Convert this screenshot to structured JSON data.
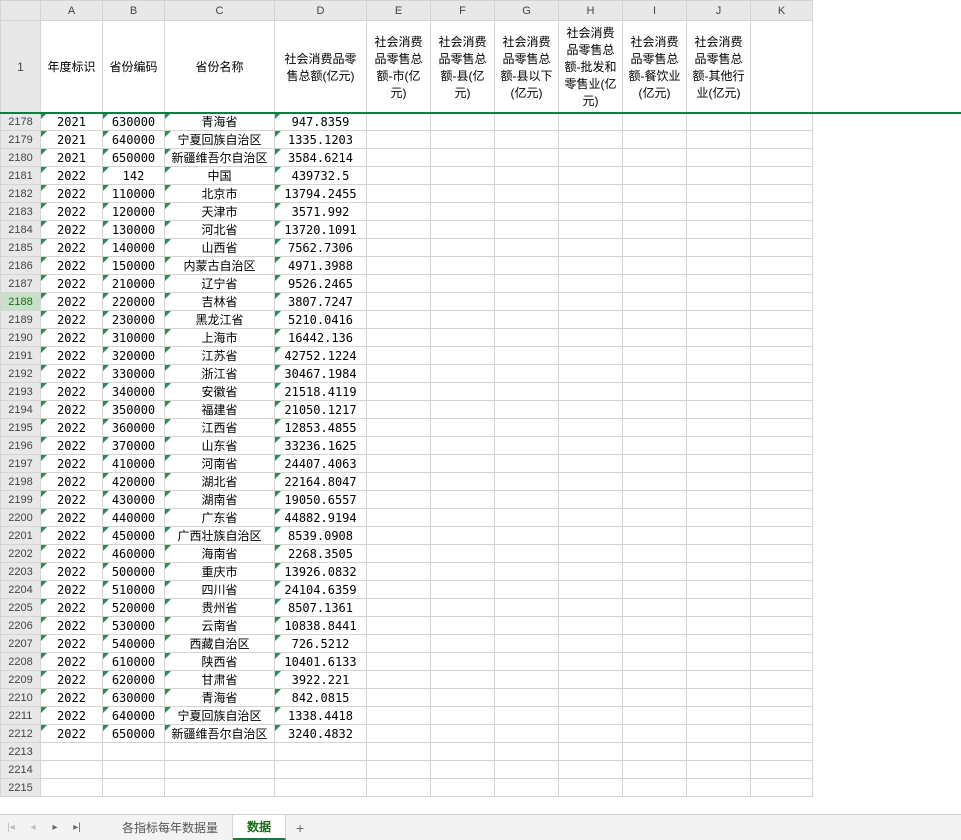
{
  "columns": [
    "A",
    "B",
    "C",
    "D",
    "E",
    "F",
    "G",
    "H",
    "I",
    "J",
    "K"
  ],
  "headerRowNum": "1",
  "fields": [
    "年度标识",
    "省份编码",
    "省份名称",
    "社会消费品零售总额(亿元)",
    "社会消费品零售总额-市(亿元)",
    "社会消费品零售总额-县(亿元)",
    "社会消费品零售总额-县以下(亿元)",
    "社会消费品零售总额-批发和零售业(亿元)",
    "社会消费品零售总额-餐饮业(亿元)",
    "社会消费品零售总额-其他行业(亿元)",
    ""
  ],
  "selectedRowHeader": "2188",
  "rows": [
    {
      "n": "2178",
      "a": "2021",
      "b": "630000",
      "c": "青海省",
      "d": "947.8359"
    },
    {
      "n": "2179",
      "a": "2021",
      "b": "640000",
      "c": "宁夏回族自治区",
      "d": "1335.1203"
    },
    {
      "n": "2180",
      "a": "2021",
      "b": "650000",
      "c": "新疆维吾尔自治区",
      "d": "3584.6214"
    },
    {
      "n": "2181",
      "a": "2022",
      "b": "142",
      "c": "中国",
      "d": "439732.5"
    },
    {
      "n": "2182",
      "a": "2022",
      "b": "110000",
      "c": "北京市",
      "d": "13794.2455"
    },
    {
      "n": "2183",
      "a": "2022",
      "b": "120000",
      "c": "天津市",
      "d": "3571.992"
    },
    {
      "n": "2184",
      "a": "2022",
      "b": "130000",
      "c": "河北省",
      "d": "13720.1091"
    },
    {
      "n": "2185",
      "a": "2022",
      "b": "140000",
      "c": "山西省",
      "d": "7562.7306"
    },
    {
      "n": "2186",
      "a": "2022",
      "b": "150000",
      "c": "内蒙古自治区",
      "d": "4971.3988"
    },
    {
      "n": "2187",
      "a": "2022",
      "b": "210000",
      "c": "辽宁省",
      "d": "9526.2465"
    },
    {
      "n": "2188",
      "a": "2022",
      "b": "220000",
      "c": "吉林省",
      "d": "3807.7247"
    },
    {
      "n": "2189",
      "a": "2022",
      "b": "230000",
      "c": "黑龙江省",
      "d": "5210.0416"
    },
    {
      "n": "2190",
      "a": "2022",
      "b": "310000",
      "c": "上海市",
      "d": "16442.136"
    },
    {
      "n": "2191",
      "a": "2022",
      "b": "320000",
      "c": "江苏省",
      "d": "42752.1224"
    },
    {
      "n": "2192",
      "a": "2022",
      "b": "330000",
      "c": "浙江省",
      "d": "30467.1984"
    },
    {
      "n": "2193",
      "a": "2022",
      "b": "340000",
      "c": "安徽省",
      "d": "21518.4119"
    },
    {
      "n": "2194",
      "a": "2022",
      "b": "350000",
      "c": "福建省",
      "d": "21050.1217"
    },
    {
      "n": "2195",
      "a": "2022",
      "b": "360000",
      "c": "江西省",
      "d": "12853.4855"
    },
    {
      "n": "2196",
      "a": "2022",
      "b": "370000",
      "c": "山东省",
      "d": "33236.1625"
    },
    {
      "n": "2197",
      "a": "2022",
      "b": "410000",
      "c": "河南省",
      "d": "24407.4063"
    },
    {
      "n": "2198",
      "a": "2022",
      "b": "420000",
      "c": "湖北省",
      "d": "22164.8047"
    },
    {
      "n": "2199",
      "a": "2022",
      "b": "430000",
      "c": "湖南省",
      "d": "19050.6557"
    },
    {
      "n": "2200",
      "a": "2022",
      "b": "440000",
      "c": "广东省",
      "d": "44882.9194"
    },
    {
      "n": "2201",
      "a": "2022",
      "b": "450000",
      "c": "广西壮族自治区",
      "d": "8539.0908"
    },
    {
      "n": "2202",
      "a": "2022",
      "b": "460000",
      "c": "海南省",
      "d": "2268.3505"
    },
    {
      "n": "2203",
      "a": "2022",
      "b": "500000",
      "c": "重庆市",
      "d": "13926.0832"
    },
    {
      "n": "2204",
      "a": "2022",
      "b": "510000",
      "c": "四川省",
      "d": "24104.6359"
    },
    {
      "n": "2205",
      "a": "2022",
      "b": "520000",
      "c": "贵州省",
      "d": "8507.1361"
    },
    {
      "n": "2206",
      "a": "2022",
      "b": "530000",
      "c": "云南省",
      "d": "10838.8441"
    },
    {
      "n": "2207",
      "a": "2022",
      "b": "540000",
      "c": "西藏自治区",
      "d": "726.5212"
    },
    {
      "n": "2208",
      "a": "2022",
      "b": "610000",
      "c": "陕西省",
      "d": "10401.6133"
    },
    {
      "n": "2209",
      "a": "2022",
      "b": "620000",
      "c": "甘肃省",
      "d": "3922.221"
    },
    {
      "n": "2210",
      "a": "2022",
      "b": "630000",
      "c": "青海省",
      "d": "842.0815"
    },
    {
      "n": "2211",
      "a": "2022",
      "b": "640000",
      "c": "宁夏回族自治区",
      "d": "1338.4418"
    },
    {
      "n": "2212",
      "a": "2022",
      "b": "650000",
      "c": "新疆维吾尔自治区",
      "d": "3240.4832"
    },
    {
      "n": "2213",
      "a": "",
      "b": "",
      "c": "",
      "d": ""
    },
    {
      "n": "2214",
      "a": "",
      "b": "",
      "c": "",
      "d": ""
    },
    {
      "n": "2215",
      "a": "",
      "b": "",
      "c": "",
      "d": ""
    }
  ],
  "tabs": {
    "nav_first": "|◂",
    "nav_prev": "◂",
    "nav_next": "▸",
    "nav_last": "▸|",
    "items": [
      {
        "label": "各指标每年数据量",
        "active": false
      },
      {
        "label": "数据",
        "active": true
      }
    ],
    "add": "+"
  },
  "style": {
    "grid_color": "#d4d4d4",
    "header_bg": "#e8e8e8",
    "accent": "#107c41",
    "triangle": "#2e8b57",
    "selected_row_bg": "#c8e0c8"
  }
}
